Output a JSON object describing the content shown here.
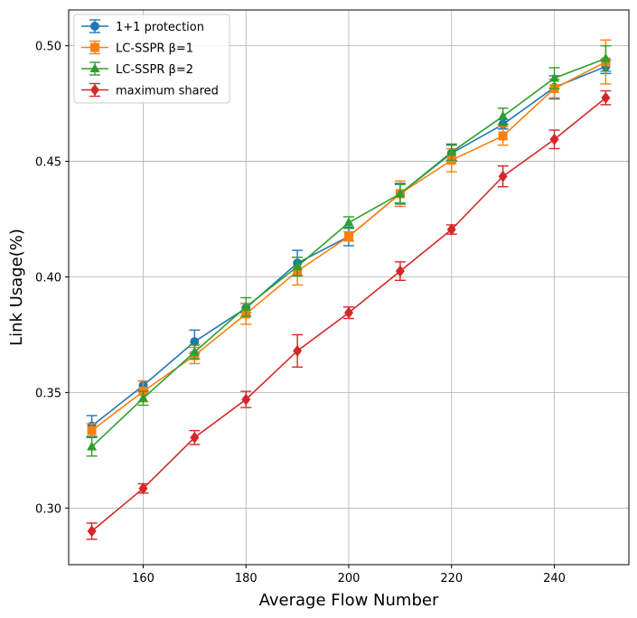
{
  "chart_data": {
    "type": "line",
    "xlabel": "Average Flow Number",
    "ylabel": "Link Usage(%)",
    "xlim": [
      145.5,
      254.5
    ],
    "ylim": [
      0.2755,
      0.5155
    ],
    "grid": true,
    "legend_position": "top-left",
    "xticks": [
      160,
      180,
      200,
      220,
      240
    ],
    "yticks": [
      0.3,
      0.35,
      0.4,
      0.45,
      0.5
    ],
    "x": [
      150,
      160,
      170,
      180,
      190,
      200,
      210,
      220,
      230,
      240,
      250
    ],
    "series": [
      {
        "name": "1+1 protection",
        "color": "#1f77b4",
        "marker": "circle",
        "values": [
          0.3355,
          0.353,
          0.372,
          0.3865,
          0.406,
          0.4175,
          0.436,
          0.4535,
          0.466,
          0.482,
          0.491
        ],
        "errors": [
          0.0045,
          0.002,
          0.005,
          0.002,
          0.0055,
          0.004,
          0.0045,
          0.0035,
          0.002,
          0.005,
          0.003
        ]
      },
      {
        "name": "LC-SSPR β=1",
        "color": "#ff7f0e",
        "marker": "square",
        "values": [
          0.3335,
          0.3505,
          0.366,
          0.384,
          0.4025,
          0.4175,
          0.436,
          0.4505,
          0.461,
          0.4815,
          0.493
        ],
        "errors": [
          0.003,
          0.0045,
          0.0035,
          0.0045,
          0.006,
          0.002,
          0.0055,
          0.005,
          0.004,
          0.004,
          0.0095
        ]
      },
      {
        "name": "LC-SSPR β=2",
        "color": "#2ca02c",
        "marker": "triangle",
        "values": [
          0.3265,
          0.3475,
          0.3675,
          0.387,
          0.4045,
          0.4235,
          0.436,
          0.454,
          0.4695,
          0.486,
          0.4945
        ],
        "errors": [
          0.004,
          0.003,
          0.003,
          0.004,
          0.004,
          0.0025,
          0.004,
          0.0035,
          0.0035,
          0.0045,
          0.0055
        ]
      },
      {
        "name": "maximum shared",
        "color": "#d62728",
        "marker": "diamond",
        "values": [
          0.29,
          0.3085,
          0.3305,
          0.347,
          0.368,
          0.3845,
          0.4025,
          0.4205,
          0.4435,
          0.4595,
          0.4775
        ],
        "errors": [
          0.0035,
          0.002,
          0.003,
          0.0035,
          0.007,
          0.0025,
          0.004,
          0.002,
          0.0045,
          0.004,
          0.003
        ]
      }
    ]
  }
}
